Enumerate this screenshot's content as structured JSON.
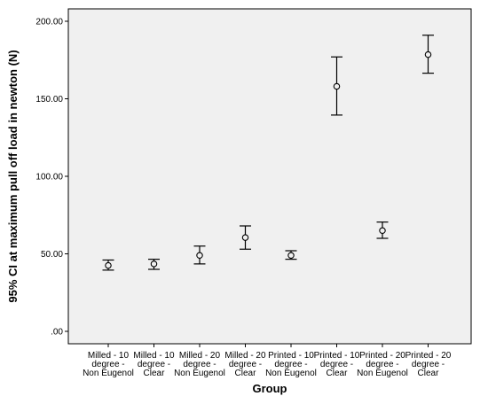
{
  "chart_data": {
    "type": "errorbar",
    "xlabel": "Group",
    "ylabel": "95% CI at maximum pull off load in newton (N)",
    "ylim": [
      -8,
      208
    ],
    "yticks": [
      {
        "value": 0,
        "label": ".00"
      },
      {
        "value": 50,
        "label": "50.00"
      },
      {
        "value": 100,
        "label": "100.00"
      },
      {
        "value": 150,
        "label": "150.00"
      },
      {
        "value": 200,
        "label": "200.00"
      }
    ],
    "grid": false,
    "colors": {
      "plot_background": "#f0f0f0",
      "marks": "#000000"
    },
    "categories": [
      [
        "Milled - 10",
        "degree -",
        "Non Eugenol"
      ],
      [
        "Milled - 10",
        "degree -",
        "Clear"
      ],
      [
        "Milled - 20",
        "degree -",
        "Non Eugenol"
      ],
      [
        "Milled - 20",
        "degree -",
        "Clear"
      ],
      [
        "Printed - 10",
        "degree -",
        "Non Eugenol"
      ],
      [
        "Printed - 10",
        "degree -",
        "Clear"
      ],
      [
        "Printed - 20",
        "degree -",
        "Non Eugenol"
      ],
      [
        "Printed - 20",
        "degree -",
        "Clear"
      ]
    ],
    "series": [
      {
        "mean": [
          42.5,
          43.5,
          49.0,
          60.5,
          49.0,
          158.0,
          65.0,
          178.5
        ],
        "lower": [
          39.5,
          40.0,
          43.5,
          53.0,
          46.5,
          139.5,
          60.0,
          166.5
        ],
        "upper": [
          46.0,
          46.5,
          55.0,
          68.0,
          52.0,
          177.0,
          70.5,
          191.0
        ]
      }
    ]
  }
}
